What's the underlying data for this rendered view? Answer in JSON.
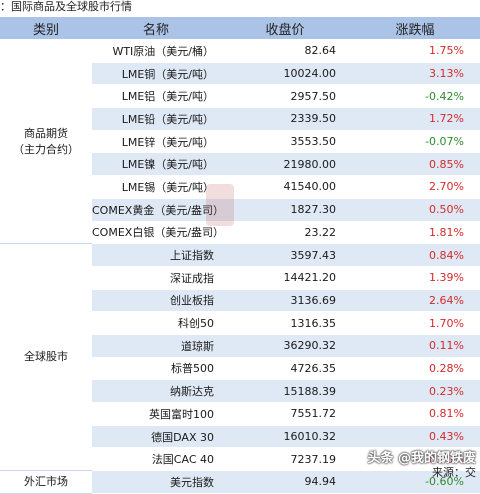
{
  "title": "：国际商品及全球股市行情",
  "header": {
    "category": "类别",
    "name": "名称",
    "price": "收盘价",
    "change": "涨跌幅"
  },
  "colors": {
    "up": "#d42a2a",
    "down": "#2e8b2e",
    "header_bg": "#aac3e6",
    "stripe_bg": "#dfe9f6"
  },
  "groups": [
    {
      "label": "商品期货\n（主力合约）",
      "rows": [
        {
          "name": "WTI原油（美元/桶）",
          "price": "82.64",
          "change": "1.75%",
          "dir": "up"
        },
        {
          "name": "LME铜（美元/吨）",
          "price": "10024.00",
          "change": "3.13%",
          "dir": "up"
        },
        {
          "name": "LME铝（美元/吨）",
          "price": "2957.50",
          "change": "-0.42%",
          "dir": "down"
        },
        {
          "name": "LME铅（美元/吨）",
          "price": "2339.50",
          "change": "1.72%",
          "dir": "up"
        },
        {
          "name": "LME锌（美元/吨）",
          "price": "3553.50",
          "change": "-0.07%",
          "dir": "down"
        },
        {
          "name": "LME镍（美元/吨）",
          "price": "21980.00",
          "change": "0.85%",
          "dir": "up"
        },
        {
          "name": "LME锡（美元/吨）",
          "price": "41540.00",
          "change": "2.70%",
          "dir": "up"
        },
        {
          "name": "COMEX黄金（美元/盎司）",
          "price": "1827.30",
          "change": "0.50%",
          "dir": "up"
        },
        {
          "name": "COMEX白银（美元/盎司）",
          "price": "23.22",
          "change": "1.81%",
          "dir": "up"
        }
      ]
    },
    {
      "label": "全球股市",
      "rows": [
        {
          "name": "上证指数",
          "price": "3597.43",
          "change": "0.84%",
          "dir": "up"
        },
        {
          "name": "深证成指",
          "price": "14421.20",
          "change": "1.39%",
          "dir": "up"
        },
        {
          "name": "创业板指",
          "price": "3136.69",
          "change": "2.64%",
          "dir": "up"
        },
        {
          "name": "科创50",
          "price": "1316.35",
          "change": "1.70%",
          "dir": "up"
        },
        {
          "name": "道琼斯",
          "price": "36290.32",
          "change": "0.11%",
          "dir": "up"
        },
        {
          "name": "标普500",
          "price": "4726.35",
          "change": "0.28%",
          "dir": "up"
        },
        {
          "name": "纳斯达克",
          "price": "15188.39",
          "change": "0.23%",
          "dir": "up"
        },
        {
          "name": "英国富时100",
          "price": "7551.72",
          "change": "0.81%",
          "dir": "up"
        },
        {
          "name": "德国DAX 30",
          "price": "16010.32",
          "change": "0.43%",
          "dir": "up"
        },
        {
          "name": "法国CAC 40",
          "price": "7237.19",
          "change": "0.75%",
          "dir": "up"
        }
      ]
    },
    {
      "label": "外汇市场",
      "rows": [
        {
          "name": "美元指数",
          "price": "94.94",
          "change": "-0.60%",
          "dir": "down"
        }
      ]
    }
  ],
  "source_note": "来源：交",
  "brand_watermark": "头条 @我的钢铁废"
}
